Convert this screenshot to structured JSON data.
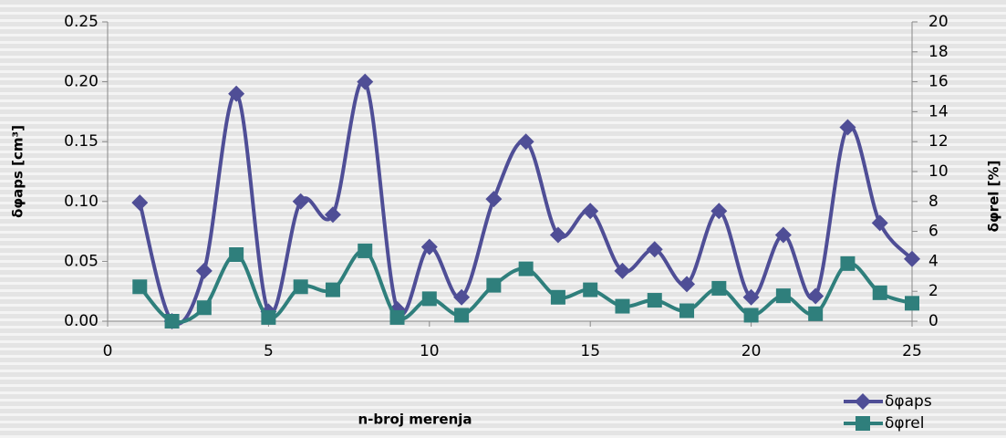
{
  "chart_data": {
    "type": "line",
    "x_label": "n-broj merenja",
    "y_label": "δφaps [cm³]",
    "y2_label": "δφrel [%]",
    "xlim": [
      0,
      25
    ],
    "xticks": [
      0,
      5,
      10,
      15,
      20,
      25
    ],
    "ylim": [
      0,
      0.25
    ],
    "yticks": [
      {
        "value": 0,
        "label": "0.00"
      },
      0.05,
      {
        "value": 0.1,
        "label": "0.10"
      },
      0.15,
      {
        "value": 0.2,
        "label": "0.20"
      },
      0.25
    ],
    "y2lim": [
      0,
      20
    ],
    "y2ticks": [
      0,
      2,
      4,
      6,
      8,
      10,
      12,
      14,
      16,
      18,
      20
    ],
    "x": [
      1,
      2,
      3,
      4,
      5,
      6,
      7,
      8,
      9,
      10,
      11,
      12,
      13,
      14,
      15,
      16,
      17,
      18,
      19,
      20,
      21,
      22,
      23,
      24,
      25
    ],
    "legend": "bottom-right",
    "series": [
      {
        "name": "δφaps",
        "color": "#4f4e96",
        "marker": "diamond",
        "values": [
          0.099,
          0,
          0.042,
          0.19,
          0.008,
          0.1,
          0.089,
          0.2,
          0.01,
          0.062,
          0.02,
          0.102,
          0.15,
          0.072,
          0.092,
          0.042,
          0.06,
          0.031,
          0.092,
          0.02,
          0.072,
          0.021,
          0.162,
          0.082,
          0.052
        ]
      },
      {
        "name": "δφrel",
        "color": "#2f7f7c",
        "marker": "square",
        "axis": "y2",
        "values": [
          2.3,
          0,
          0.9,
          4.45,
          0.25,
          2.3,
          2.1,
          4.7,
          0.25,
          1.5,
          0.4,
          2.4,
          3.5,
          1.6,
          2.1,
          1.0,
          1.4,
          0.7,
          2.2,
          0.4,
          1.7,
          0.5,
          3.85,
          1.9,
          1.2
        ]
      }
    ]
  }
}
